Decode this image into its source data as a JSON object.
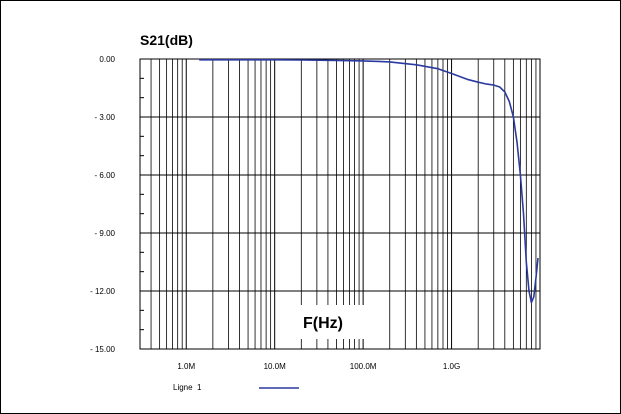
{
  "chart_data": {
    "type": "line",
    "title": "S21(dB)",
    "xlabel": "F(Hz)",
    "ylabel": "",
    "x_scale": "log",
    "xlim": [
      300000,
      10000000000
    ],
    "ylim": [
      -15,
      0
    ],
    "y_ticks": [
      0,
      -3,
      -6,
      -9,
      -12,
      -15
    ],
    "y_tick_labels": [
      "0.00",
      "- 3.00",
      "- 6.00",
      "- 9.00",
      "- 12.00",
      "- 15.00"
    ],
    "x_ticks": [
      1000000,
      10000000,
      100000000,
      1000000000
    ],
    "x_tick_labels": [
      "1.0M",
      "10.0M",
      "100.0M",
      "1.0G"
    ],
    "grid": true,
    "legend": "bottom-left",
    "series": [
      {
        "name": "Ligne  1",
        "color": "#2b3aa0",
        "x": [
          1400000,
          2000000,
          5000000,
          10000000,
          20000000,
          50000000,
          100000000,
          200000000,
          400000000,
          700000000,
          1000000000,
          1500000000,
          2000000000,
          2500000000,
          3000000000,
          3500000000,
          4000000000,
          4500000000,
          5000000000,
          5500000000,
          6000000000,
          6500000000,
          7000000000,
          7500000000,
          8000000000,
          8500000000,
          9000000000,
          9500000000
        ],
        "y": [
          -0.04,
          -0.04,
          -0.04,
          -0.04,
          -0.05,
          -0.07,
          -0.1,
          -0.15,
          -0.3,
          -0.5,
          -0.75,
          -1.05,
          -1.2,
          -1.3,
          -1.35,
          -1.45,
          -1.7,
          -2.2,
          -3.0,
          -4.3,
          -6.0,
          -8.0,
          -10.5,
          -12.0,
          -12.6,
          -12.3,
          -11.3,
          -10.3
        ]
      }
    ]
  }
}
